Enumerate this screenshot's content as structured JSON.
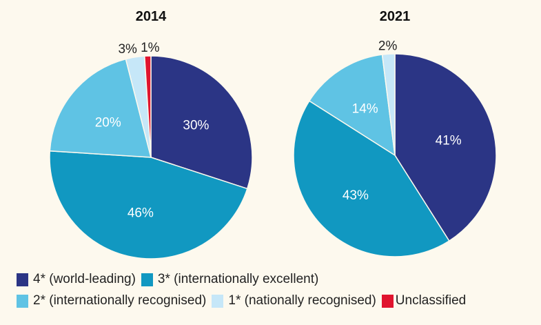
{
  "chart_data": [
    {
      "type": "pie",
      "title": "2014",
      "categories": [
        "4* (world-leading)",
        "3* (internationally excellent)",
        "2* (internationally recognised)",
        "1* (nationally recognised)",
        "Unclassified"
      ],
      "values": [
        30,
        46,
        20,
        3,
        1
      ],
      "labels": [
        "30%",
        "46%",
        "20%",
        "3%",
        "1%"
      ]
    },
    {
      "type": "pie",
      "title": "2021",
      "categories": [
        "4* (world-leading)",
        "3* (internationally excellent)",
        "2* (internationally recognised)",
        "1* (nationally recognised)",
        "Unclassified"
      ],
      "values": [
        41,
        43,
        14,
        2,
        0
      ],
      "labels": [
        "41%",
        "43%",
        "14%",
        "2%",
        ""
      ]
    }
  ],
  "legend": {
    "placement": "bottom",
    "items": [
      {
        "label": "4* (world-leading)",
        "color": "#2b3585"
      },
      {
        "label": "3* (internationally excellent)",
        "color": "#1198c1"
      },
      {
        "label": "2* (internationally recognised)",
        "color": "#5fc3e4"
      },
      {
        "label": "1* (nationally recognised)",
        "color": "#c6e7f8"
      },
      {
        "label": "Unclassified",
        "color": "#e0142e"
      }
    ]
  }
}
